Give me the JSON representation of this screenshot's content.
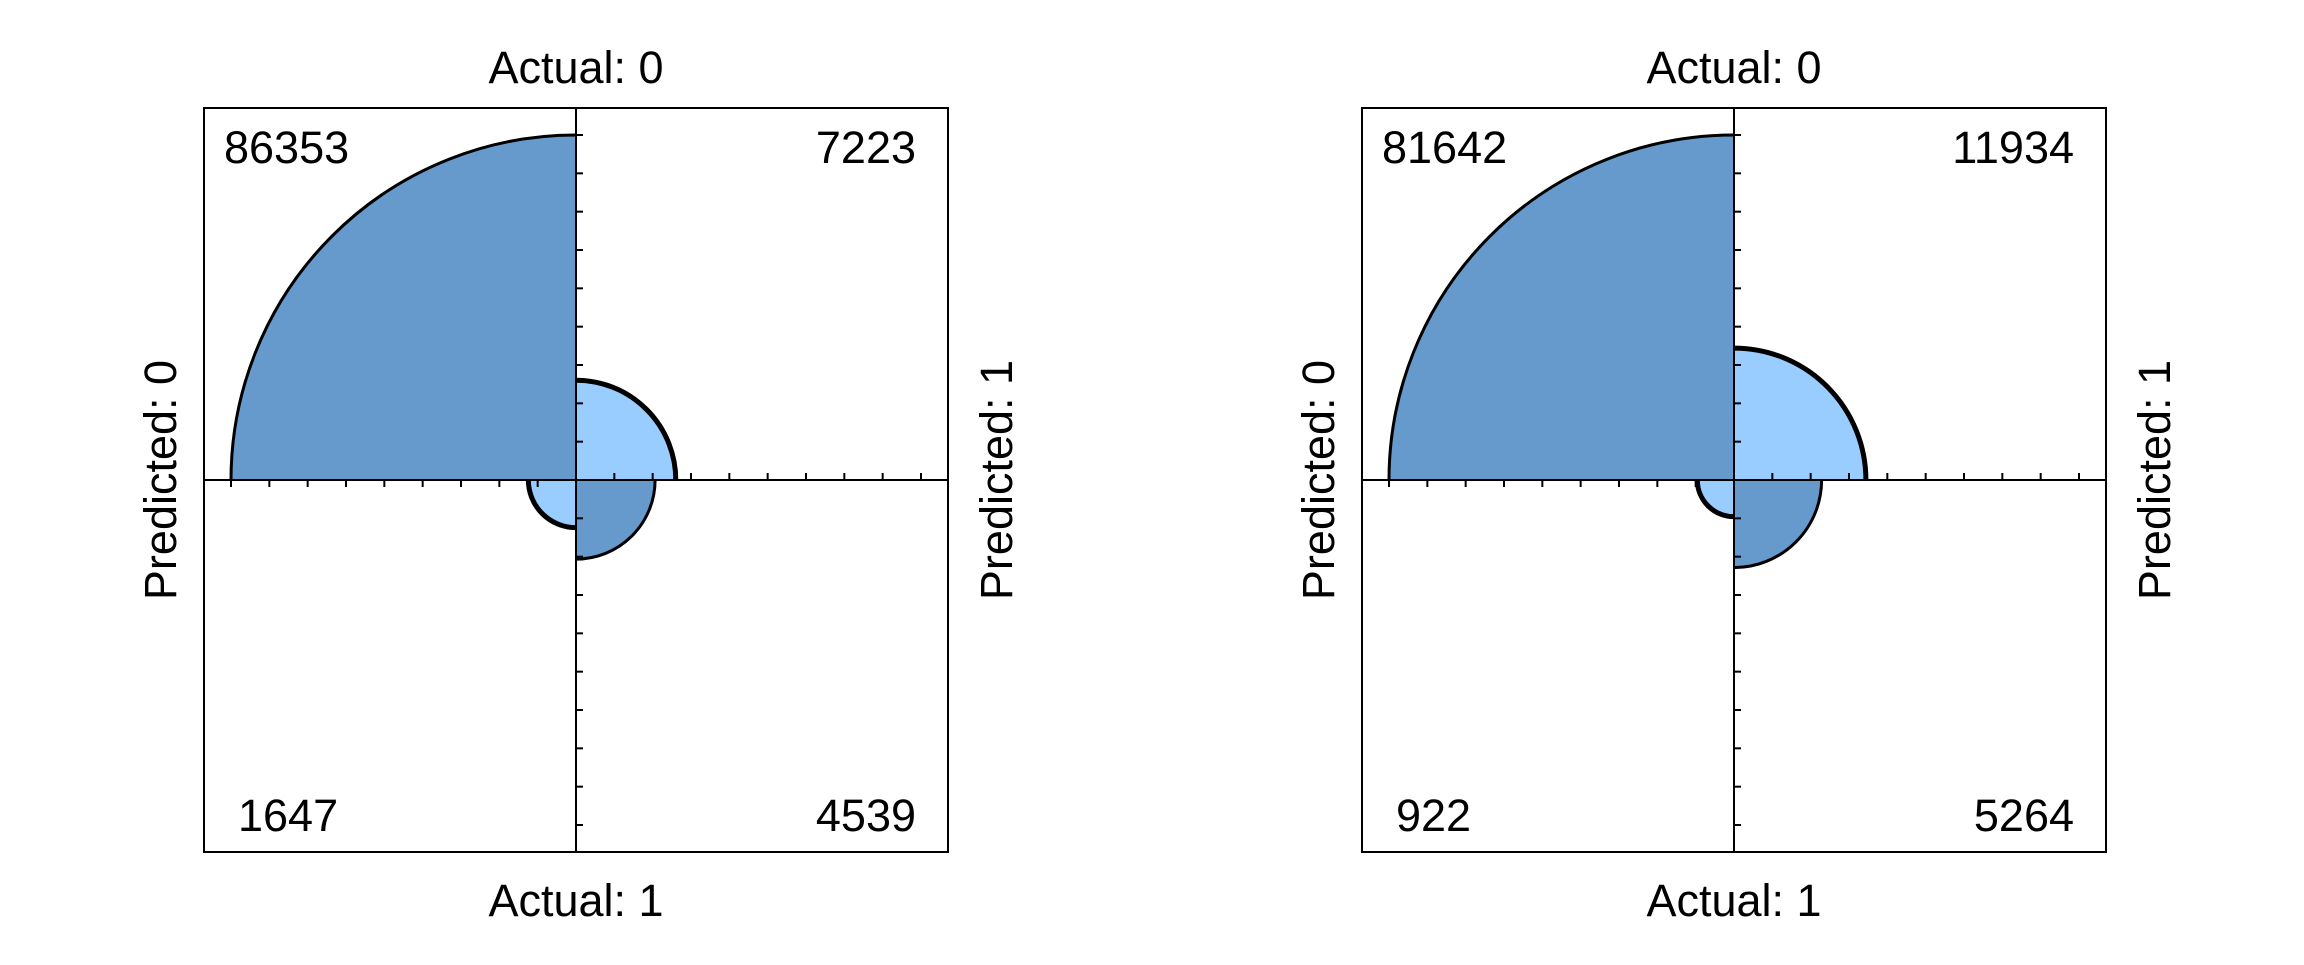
{
  "chart_data": [
    {
      "type": "fourfold",
      "top_label": "Actual: 0",
      "bottom_label": "Actual: 1",
      "left_label": "Predicted: 0",
      "right_label": "Predicted: 1",
      "cells": {
        "top_left": 86353,
        "top_right": 7223,
        "bottom_left": 1647,
        "bottom_right": 4539
      }
    },
    {
      "type": "fourfold",
      "top_label": "Actual: 0",
      "bottom_label": "Actual: 1",
      "left_label": "Predicted: 0",
      "right_label": "Predicted: 1",
      "cells": {
        "top_left": 81642,
        "top_right": 11934,
        "bottom_left": 922,
        "bottom_right": 5264
      }
    }
  ],
  "colors": {
    "major_fill": "#6699CC",
    "minor_fill": "#99CCFF",
    "frame": "#000000"
  }
}
